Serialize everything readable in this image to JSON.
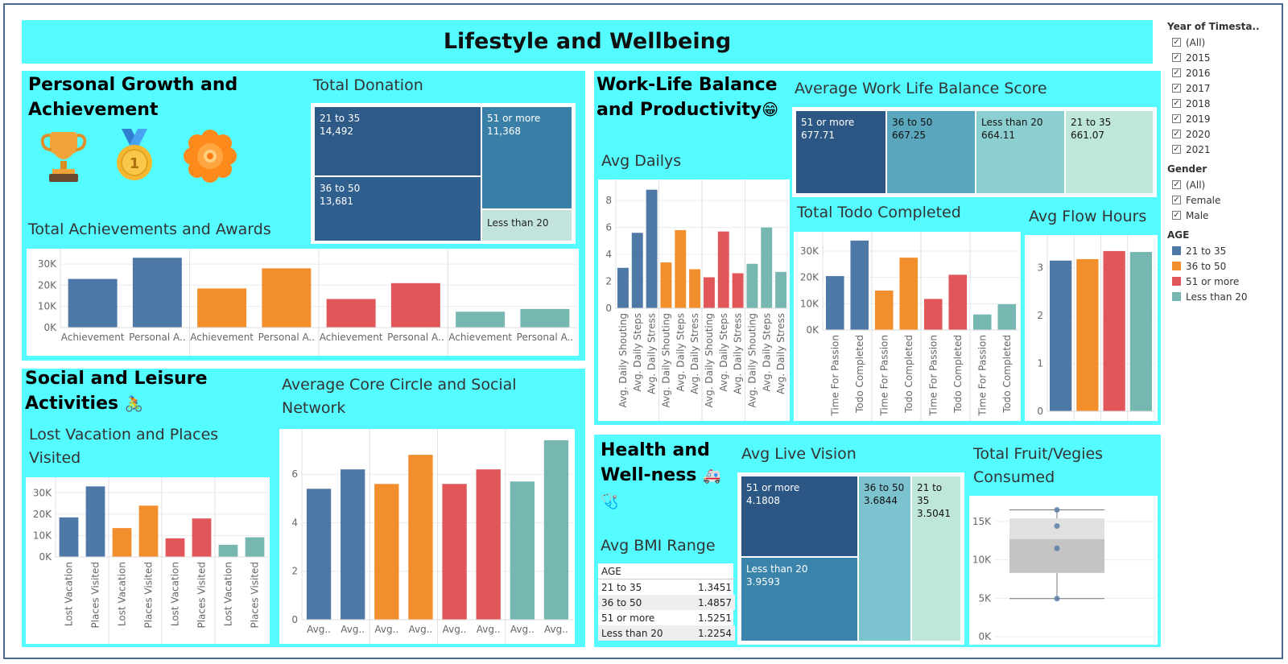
{
  "dashboard_title": "Lifestyle and Wellbeing",
  "colors": {
    "21 to 35": "#4e79a7",
    "36 to 50": "#f28e2b",
    "51 or more": "#e15759",
    "Less than 20": "#76b7b2"
  },
  "sections": {
    "personal": "Personal Growth and Achievement",
    "social": "Social and Leisure Activities",
    "social_icon": "🚴",
    "work": "Work-Life Balance and Productivity",
    "work_icon": "😁",
    "health": "Health and Well-ness",
    "health_icon": "🚑🩺"
  },
  "icons": [
    "trophy-icon",
    "medal-icon",
    "flower-badge-icon"
  ],
  "filters": {
    "year_title": "Year of Timesta..",
    "years": [
      "(All)",
      "2015",
      "2016",
      "2017",
      "2018",
      "2019",
      "2020",
      "2021"
    ],
    "gender_title": "Gender",
    "genders": [
      "(All)",
      "Female",
      "Male"
    ],
    "age_title": "AGE",
    "ages": [
      "21 to 35",
      "36 to 50",
      "51 or more",
      "Less than 20"
    ]
  },
  "chart_data": [
    {
      "id": "donation",
      "type": "treemap",
      "title": "Total Donation",
      "cells": [
        {
          "label": "21 to 35",
          "value": "14,492"
        },
        {
          "label": "36 to 50",
          "value": "13,681"
        },
        {
          "label": "51 or more",
          "value": "11,368"
        },
        {
          "label": "Less than 20",
          "value": ""
        }
      ]
    },
    {
      "id": "achievements",
      "type": "bar",
      "title": "Total Achievements and Awards",
      "groups": [
        "21 to 35",
        "36 to 50",
        "51 or more",
        "Less than 20"
      ],
      "categories": [
        "Achievement",
        "Personal A.."
      ],
      "series": [
        {
          "values": [
            23000,
            33000
          ]
        },
        {
          "values": [
            18500,
            28000
          ]
        },
        {
          "values": [
            13500,
            21000
          ]
        },
        {
          "values": [
            7500,
            8800
          ]
        }
      ],
      "yticks": [
        "30K",
        "20K",
        "10K",
        "0K"
      ],
      "ylim": [
        0,
        35000
      ]
    },
    {
      "id": "vacation",
      "type": "bar",
      "title": "Lost Vacation and Places Visited",
      "groups": [
        "21 to 35",
        "36 to 50",
        "51 or more",
        "Less than 20"
      ],
      "categories": [
        "Lost Vacation",
        "Places Visited"
      ],
      "series": [
        {
          "values": [
            18500,
            33000
          ]
        },
        {
          "values": [
            13500,
            24000
          ]
        },
        {
          "values": [
            8700,
            18000
          ]
        },
        {
          "values": [
            5700,
            9200
          ]
        }
      ],
      "yticks": [
        "30K",
        "20K",
        "10K",
        "0K"
      ],
      "ylim": [
        0,
        35000
      ]
    },
    {
      "id": "core_circle",
      "type": "bar",
      "title": "Average Core Circle and Social Network",
      "groups": [
        "21 to 35",
        "36 to 50",
        "51 or more",
        "Less than 20"
      ],
      "categories": [
        "Avg..",
        "Avg.."
      ],
      "series": [
        {
          "values": [
            5.4,
            6.2
          ]
        },
        {
          "values": [
            5.6,
            6.8
          ]
        },
        {
          "values": [
            5.6,
            6.2
          ]
        },
        {
          "values": [
            5.7,
            7.4
          ]
        }
      ],
      "yticks": [
        "6",
        "4",
        "2",
        "0"
      ],
      "ylim": [
        0,
        7.6
      ]
    },
    {
      "id": "wlb",
      "type": "treemap",
      "title": "Average Work Life Balance Score",
      "cells": [
        {
          "label": "51 or more",
          "value": "677.71"
        },
        {
          "label": "36 to 50",
          "value": "667.25"
        },
        {
          "label": "Less than 20",
          "value": "664.11"
        },
        {
          "label": "21 to 35",
          "value": "661.07"
        }
      ]
    },
    {
      "id": "dailys",
      "type": "bar",
      "title": "Avg Dailys",
      "groups": [
        "21 to 35",
        "36 to 50",
        "51 or more",
        "Less than 20"
      ],
      "categories": [
        "Avg. Daily Shouting",
        "Avg. Daily Steps",
        "Avg. Daily Stress"
      ],
      "series": [
        {
          "values": [
            3.0,
            5.6,
            8.8
          ]
        },
        {
          "values": [
            3.4,
            5.8,
            2.9
          ]
        },
        {
          "values": [
            2.3,
            5.7,
            2.6
          ]
        },
        {
          "values": [
            3.3,
            6.0,
            2.7
          ]
        }
      ],
      "yticks": [
        "8",
        "6",
        "4",
        "2",
        "0"
      ],
      "ylim": [
        0,
        9.2
      ]
    },
    {
      "id": "todo",
      "type": "bar",
      "title": "Total Todo Completed",
      "groups": [
        "21 to 35",
        "36 to 50",
        "51 or more",
        "Less than 20"
      ],
      "categories": [
        "Time For Passion",
        "Todo Completed"
      ],
      "series": [
        {
          "values": [
            20500,
            34000
          ]
        },
        {
          "values": [
            15000,
            27500
          ]
        },
        {
          "values": [
            11800,
            21000
          ]
        },
        {
          "values": [
            5900,
            9800
          ]
        }
      ],
      "yticks": [
        "30K",
        "20K",
        "10K",
        "0K"
      ],
      "ylim": [
        0,
        35500
      ]
    },
    {
      "id": "flow",
      "type": "bar",
      "title": "Avg Flow Hours",
      "groups": [
        "21 to 35",
        "36 to 50",
        "51 or more",
        "Less than 20"
      ],
      "categories": [
        ""
      ],
      "series": [
        {
          "values": [
            3.15
          ]
        },
        {
          "values": [
            3.18
          ]
        },
        {
          "values": [
            3.35
          ]
        },
        {
          "values": [
            3.33
          ]
        }
      ],
      "yticks": [
        "3",
        "2",
        "1",
        "0"
      ],
      "ylim": [
        0,
        3.55
      ]
    },
    {
      "id": "vision",
      "type": "treemap",
      "title": "Avg Live Vision",
      "cells": [
        {
          "label": "51 or more",
          "value": "4.1808"
        },
        {
          "label": "Less than 20",
          "value": "3.9593"
        },
        {
          "label": "36 to 50",
          "value": "3.6844"
        },
        {
          "label": "21 to 35",
          "value": "3.5041"
        }
      ]
    },
    {
      "id": "bmi",
      "type": "table",
      "title": "Avg BMI Range",
      "header": "AGE",
      "rows": [
        {
          "age": "21 to 35",
          "value": "1.3451"
        },
        {
          "age": "36 to 50",
          "value": "1.4857"
        },
        {
          "age": "51 or more",
          "value": "1.5251"
        },
        {
          "age": "Less than 20",
          "value": "1.2254"
        }
      ]
    },
    {
      "id": "fruit",
      "type": "boxplot",
      "title": "Total Fruit/Vegies Consumed",
      "yticks": [
        "15K",
        "10K",
        "5K",
        "0K"
      ],
      "ylim": [
        0,
        17500
      ],
      "min": 4950,
      "q1": 8300,
      "median": 12700,
      "q3": 15400,
      "max": 16500,
      "points": [
        4950,
        11500,
        14400,
        16500
      ]
    }
  ]
}
